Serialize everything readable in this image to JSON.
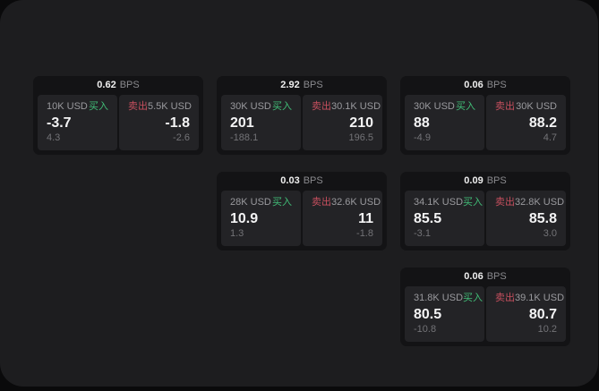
{
  "labels": {
    "bps_unit": "BPS",
    "buy": "买入",
    "sell": "卖出"
  },
  "colors": {
    "buy_accent": "#41bd77",
    "sell_accent": "#c64f5e",
    "panel_bg": "#1d1d1f",
    "card_bg": "#131315",
    "subcard_bg": "#232326"
  },
  "cards": [
    {
      "bps": "0.62",
      "col": 1,
      "row": 1,
      "buy": {
        "size": "10K USD",
        "price": "-3.7",
        "delta": "4.3"
      },
      "sell": {
        "size": "5.5K USD",
        "price": "-1.8",
        "delta": "-2.6"
      }
    },
    {
      "bps": "2.92",
      "col": 2,
      "row": 1,
      "buy": {
        "size": "30K USD",
        "price": "201",
        "delta": "-188.1"
      },
      "sell": {
        "size": "30.1K USD",
        "price": "210",
        "delta": "196.5"
      }
    },
    {
      "bps": "0.06",
      "col": 3,
      "row": 1,
      "buy": {
        "size": "30K USD",
        "price": "88",
        "delta": "-4.9"
      },
      "sell": {
        "size": "30K USD",
        "price": "88.2",
        "delta": "4.7"
      }
    },
    {
      "bps": "0.03",
      "col": 2,
      "row": 2,
      "buy": {
        "size": "28K USD",
        "price": "10.9",
        "delta": "1.3"
      },
      "sell": {
        "size": "32.6K USD",
        "price": "11",
        "delta": "-1.8"
      }
    },
    {
      "bps": "0.09",
      "col": 3,
      "row": 2,
      "buy": {
        "size": "34.1K USD",
        "price": "85.5",
        "delta": "-3.1"
      },
      "sell": {
        "size": "32.8K USD",
        "price": "85.8",
        "delta": "3.0"
      }
    },
    {
      "bps": "0.06",
      "col": 3,
      "row": 3,
      "buy": {
        "size": "31.8K USD",
        "price": "80.5",
        "delta": "-10.8"
      },
      "sell": {
        "size": "39.1K USD",
        "price": "80.7",
        "delta": "10.2"
      }
    }
  ]
}
